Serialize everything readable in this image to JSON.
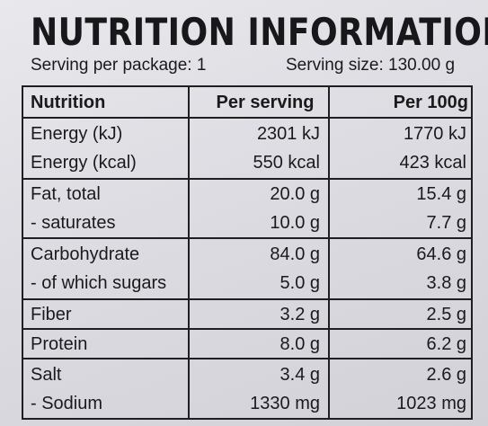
{
  "title": "NUTRITION INFORMATION",
  "serving_per_package": "Serving per package: 1",
  "serving_size": "Serving size: 130.00 g",
  "table": {
    "headers": [
      "Nutrition",
      "Per serving",
      "Per 100g"
    ],
    "groups": [
      [
        {
          "label": "Energy (kJ)",
          "per_serving": "2301 kJ",
          "per_100g": "1770 kJ"
        },
        {
          "label": "Energy (kcal)",
          "per_serving": "550 kcal",
          "per_100g": "423 kcal"
        }
      ],
      [
        {
          "label": "Fat, total",
          "per_serving": "20.0 g",
          "per_100g": "15.4 g"
        },
        {
          "label": "- saturates",
          "per_serving": "10.0 g",
          "per_100g": "7.7 g"
        }
      ],
      [
        {
          "label": "Carbohydrate",
          "per_serving": "84.0 g",
          "per_100g": "64.6 g"
        },
        {
          "label": "- of which sugars",
          "per_serving": "5.0 g",
          "per_100g": "3.8 g"
        }
      ],
      [
        {
          "label": "Fiber",
          "per_serving": "3.2 g",
          "per_100g": "2.5 g"
        }
      ],
      [
        {
          "label": "Protein",
          "per_serving": "8.0 g",
          "per_100g": "6.2 g"
        }
      ],
      [
        {
          "label": "Salt",
          "per_serving": "3.4 g",
          "per_100g": "2.6 g"
        },
        {
          "label": "- Sodium",
          "per_serving": "1330 mg",
          "per_100g": "1023 mg"
        }
      ]
    ]
  }
}
